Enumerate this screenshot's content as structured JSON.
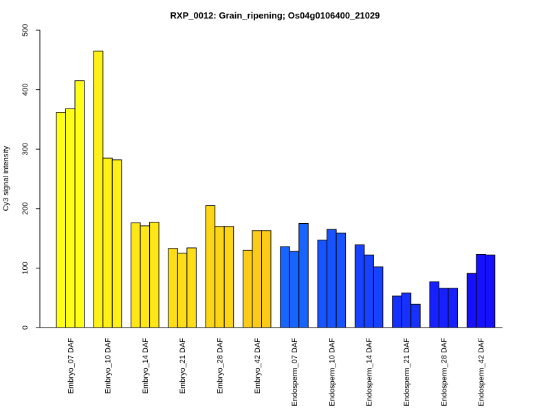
{
  "chart_data": {
    "type": "bar",
    "title": "RXP_0012: Grain_ripening; Os04g0106400_21029",
    "xlabel": "",
    "ylabel": "Cy3 signal intensity",
    "ylim": [
      0,
      500
    ],
    "yticks": [
      0,
      100,
      200,
      300,
      400,
      500
    ],
    "grid": false,
    "legend": "none",
    "categories": [
      "Embryo_07 DAF",
      "Embryo_10 DAF",
      "Embryo_14 DAF",
      "Embryo_21 DAF",
      "Embryo_28 DAF",
      "Embryo_42 DAF",
      "Endosperm_07 DAF",
      "Endosperm_10 DAF",
      "Endosperm_14 DAF",
      "Endosperm_21 DAF",
      "Endosperm_28 DAF",
      "Endosperm_42 DAF"
    ],
    "values": [
      [
        362,
        368,
        415
      ],
      [
        465,
        285,
        282
      ],
      [
        176,
        171,
        177
      ],
      [
        133,
        125,
        134
      ],
      [
        205,
        170,
        170
      ],
      [
        130,
        163,
        163
      ],
      [
        136,
        128,
        175
      ],
      [
        147,
        165,
        159
      ],
      [
        139,
        122,
        102
      ],
      [
        53,
        58,
        39
      ],
      [
        77,
        66,
        66
      ],
      [
        91,
        123,
        122
      ]
    ],
    "colors": [
      "#FFFF17",
      "#FFF117",
      "#FFE717",
      "#FFDE17",
      "#FDD517",
      "#FCCB17",
      "#1764FF",
      "#1753FF",
      "#1742FF",
      "#1732FF",
      "#1721FF",
      "#1710FF"
    ]
  }
}
